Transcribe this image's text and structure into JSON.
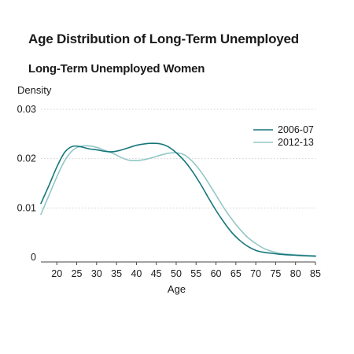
{
  "title": "Age Distribution of Long-Term Unemployed",
  "subtitle": "Long-Term Unemployed Women",
  "colors": {
    "series_2006": "#16767a",
    "series_2012": "#92c7c6",
    "grid": "#cfcfcf",
    "axis": "#444444"
  },
  "chart_data": {
    "type": "line",
    "title": "Age Distribution of Long-Term Unemployed",
    "subtitle": "Long-Term Unemployed Women",
    "xlabel": "Age",
    "ylabel": "Density",
    "xlim": [
      16,
      85
    ],
    "ylim": [
      0,
      0.03
    ],
    "xticks": [
      20,
      25,
      30,
      35,
      40,
      45,
      50,
      55,
      60,
      65,
      70,
      75,
      80,
      85
    ],
    "yticks": [
      0,
      0.01,
      0.02,
      0.03
    ],
    "ytick_labels": [
      "0",
      "0.01",
      "0.02",
      "0.03"
    ],
    "grid": true,
    "legend_position": "top-right",
    "x": [
      16,
      18,
      20,
      22,
      24,
      26,
      28,
      30,
      32,
      34,
      36,
      38,
      40,
      42,
      44,
      46,
      48,
      50,
      52,
      54,
      56,
      58,
      60,
      62,
      64,
      66,
      68,
      70,
      72,
      74,
      76,
      78,
      80,
      82,
      85
    ],
    "series": [
      {
        "name": "2006-07",
        "color": "#16767a",
        "values": [
          0.0109,
          0.0145,
          0.0183,
          0.0213,
          0.0225,
          0.0224,
          0.022,
          0.0218,
          0.0215,
          0.0214,
          0.0217,
          0.0222,
          0.0227,
          0.023,
          0.0231,
          0.023,
          0.0224,
          0.0212,
          0.0196,
          0.0175,
          0.015,
          0.0122,
          0.0095,
          0.0071,
          0.005,
          0.0034,
          0.0022,
          0.0014,
          0.001,
          0.0008,
          0.0006,
          0.0005,
          0.0004,
          0.0003,
          0.0002
        ]
      },
      {
        "name": "2012-13",
        "color": "#92c7c6",
        "values": [
          0.0087,
          0.0125,
          0.0163,
          0.0196,
          0.0217,
          0.0225,
          0.0226,
          0.0223,
          0.0217,
          0.0211,
          0.0203,
          0.0197,
          0.0196,
          0.0198,
          0.0202,
          0.0207,
          0.0211,
          0.0212,
          0.0208,
          0.0195,
          0.0176,
          0.0152,
          0.0126,
          0.01,
          0.0077,
          0.0057,
          0.004,
          0.0028,
          0.0018,
          0.0012,
          0.0008,
          0.0006,
          0.0005,
          0.0004,
          0.0003
        ]
      }
    ]
  }
}
